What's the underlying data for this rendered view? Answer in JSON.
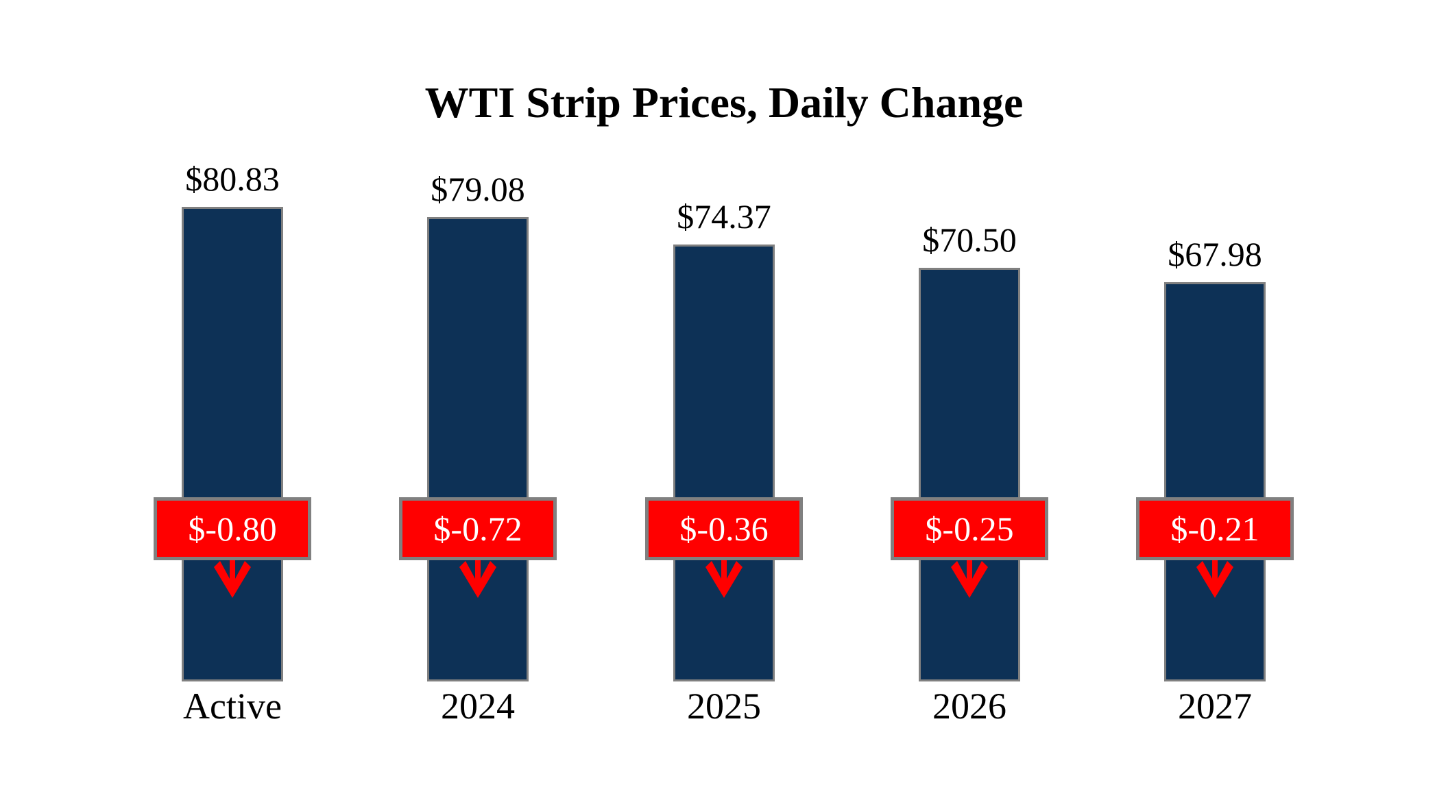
{
  "chart_data": {
    "type": "bar",
    "title": "WTI Strip Prices, Daily Change",
    "categories": [
      "Active",
      "2024",
      "2025",
      "2026",
      "2027"
    ],
    "series": [
      {
        "id": "strip_price",
        "values": [
          80.83,
          79.08,
          74.37,
          70.5,
          67.98
        ],
        "labels": [
          "$80.83",
          "$79.08",
          "$74.37",
          "$70.50",
          "$67.98"
        ]
      },
      {
        "id": "daily_change",
        "values": [
          -0.8,
          -0.72,
          -0.36,
          -0.25,
          -0.21
        ],
        "labels": [
          "$-0.80",
          "$-0.72",
          "$-0.36",
          "$-0.25",
          "$-0.21"
        ]
      }
    ],
    "ylim": [
      0,
      81
    ],
    "grid": false,
    "legend": "none",
    "axes_visible": false,
    "background": "#FFFFFF",
    "bar_color": "#0D3156",
    "bar_border_color": "#808080",
    "value_label_color": "#000000",
    "category_label_color": "#000000",
    "change_badge_bg": "#FF0000",
    "change_badge_border": "#808080",
    "change_badge_text_color": "#FFFFFF",
    "arrow_color": "#FF0000",
    "arrow_direction": "down"
  }
}
